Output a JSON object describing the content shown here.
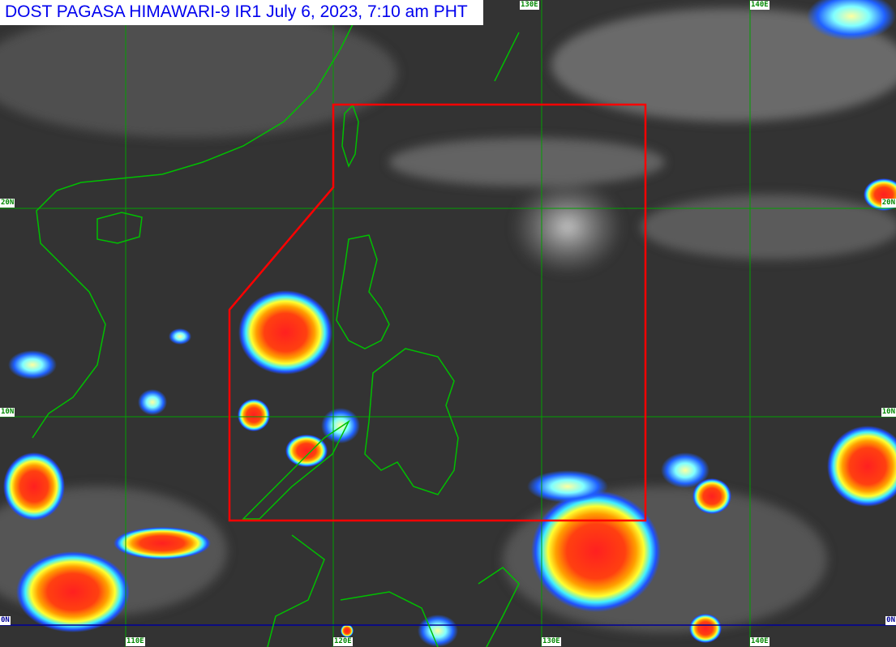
{
  "title": "DOST PAGASA HIMAWARI-9 IR1 July 6, 2023, 7:10 am PHT",
  "longitude_labels": {
    "e110": "110E",
    "e120": "120E",
    "e130": "130E",
    "e140": "140E"
  },
  "latitude_labels": {
    "n20": "20N",
    "n10": "10N",
    "n0": "0N"
  },
  "colors": {
    "grid": "#00a000",
    "coastline": "#00c000",
    "equator": "#000099",
    "par_boundary": "#ff0000",
    "title_text": "#0000ee"
  }
}
